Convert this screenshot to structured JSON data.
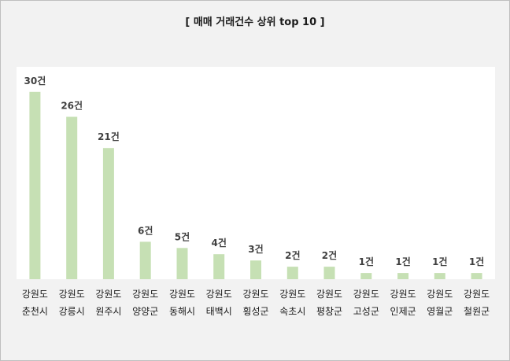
{
  "chart_data": {
    "type": "bar",
    "title": "[ 매매 거래건수 상위 top 10 ]",
    "categories": [
      [
        "강원도",
        "춘천시"
      ],
      [
        "강원도",
        "강릉시"
      ],
      [
        "강원도",
        "원주시"
      ],
      [
        "강원도",
        "양양군"
      ],
      [
        "강원도",
        "동해시"
      ],
      [
        "강원도",
        "태백시"
      ],
      [
        "강원도",
        "횡성군"
      ],
      [
        "강원도",
        "속초시"
      ],
      [
        "강원도",
        "평창군"
      ],
      [
        "강원도",
        "고성군"
      ],
      [
        "강원도",
        "인제군"
      ],
      [
        "강원도",
        "영월군"
      ],
      [
        "강원도",
        "철원군"
      ]
    ],
    "values": [
      30,
      26,
      21,
      6,
      5,
      4,
      3,
      2,
      2,
      1,
      1,
      1,
      1
    ],
    "data_labels": [
      "30건",
      "26건",
      "21건",
      "6건",
      "5건",
      "4건",
      "3건",
      "2건",
      "2건",
      "1건",
      "1건",
      "1건",
      "1건"
    ],
    "ylim": [
      0,
      34
    ],
    "grid": false,
    "legend": "none",
    "bar_color": "#c6e0b4"
  }
}
